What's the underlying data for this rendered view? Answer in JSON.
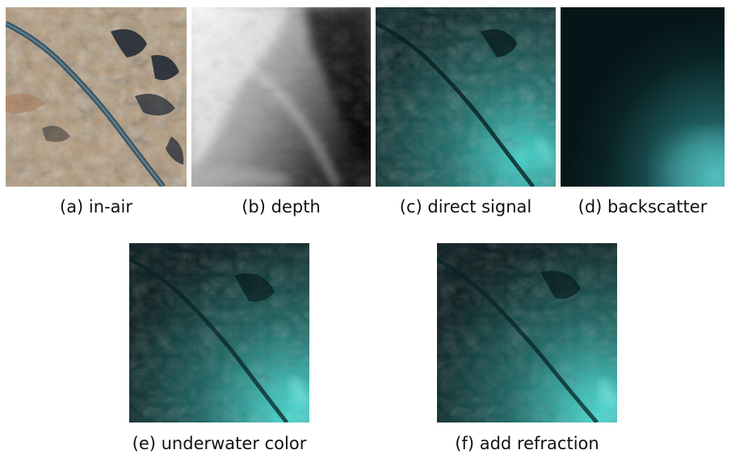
{
  "figure": {
    "panels": [
      {
        "id": "a",
        "caption": "(a) in-air"
      },
      {
        "id": "b",
        "caption": "(b) depth"
      },
      {
        "id": "c",
        "caption": "(c) direct signal"
      },
      {
        "id": "d",
        "caption": "(d) backscatter"
      },
      {
        "id": "e",
        "caption": "(e) underwater color"
      },
      {
        "id": "f",
        "caption": "(f) add refraction"
      }
    ],
    "colors": {
      "terrain_tan": "#b59a78",
      "river_blue": "#2f4f63",
      "water_teal": "#2a9a96",
      "deep_dark": "#071a1c"
    }
  }
}
